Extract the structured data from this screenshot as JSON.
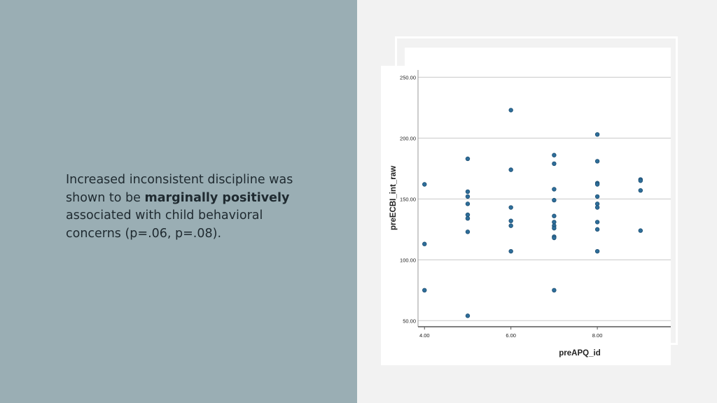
{
  "text": {
    "part1": "Increased inconsistent discipline was shown to be ",
    "bold": "marginally positively",
    "part2": " associated with child behavioral concerns (p=.06, p=.08)."
  },
  "colors": {
    "left_panel": "#9aaeb4",
    "point_fill": "#2e6e9a",
    "point_stroke": "#1d4e72"
  },
  "chart_data": {
    "type": "scatter",
    "xlabel": "preAPQ_id",
    "ylabel": "preECBI_int_raw",
    "xlim": [
      3.85,
      9.7
    ],
    "ylim": [
      45,
      256
    ],
    "xticks": [
      4,
      6,
      8
    ],
    "xtick_labels": [
      "4.00",
      "6.00",
      "8.00"
    ],
    "yticks": [
      50,
      100,
      150,
      200,
      250
    ],
    "ytick_labels": [
      "50.00",
      "100.00",
      "150.00",
      "200.00",
      "250.00"
    ],
    "grid": "horizontal",
    "points": [
      {
        "x": 4,
        "y": 162
      },
      {
        "x": 4,
        "y": 113
      },
      {
        "x": 4,
        "y": 75
      },
      {
        "x": 5,
        "y": 183
      },
      {
        "x": 5,
        "y": 156
      },
      {
        "x": 5,
        "y": 152
      },
      {
        "x": 5,
        "y": 146
      },
      {
        "x": 5,
        "y": 137
      },
      {
        "x": 5,
        "y": 134
      },
      {
        "x": 5,
        "y": 123
      },
      {
        "x": 5,
        "y": 54
      },
      {
        "x": 6,
        "y": 223
      },
      {
        "x": 6,
        "y": 174
      },
      {
        "x": 6,
        "y": 143
      },
      {
        "x": 6,
        "y": 132
      },
      {
        "x": 6,
        "y": 128
      },
      {
        "x": 6,
        "y": 107
      },
      {
        "x": 7,
        "y": 186
      },
      {
        "x": 7,
        "y": 179
      },
      {
        "x": 7,
        "y": 158
      },
      {
        "x": 7,
        "y": 149
      },
      {
        "x": 7,
        "y": 136
      },
      {
        "x": 7,
        "y": 131
      },
      {
        "x": 7,
        "y": 128
      },
      {
        "x": 7,
        "y": 126
      },
      {
        "x": 7,
        "y": 119
      },
      {
        "x": 7,
        "y": 118
      },
      {
        "x": 7,
        "y": 75
      },
      {
        "x": 8,
        "y": 203
      },
      {
        "x": 8,
        "y": 181
      },
      {
        "x": 8,
        "y": 163
      },
      {
        "x": 8,
        "y": 162
      },
      {
        "x": 8,
        "y": 152
      },
      {
        "x": 8,
        "y": 146
      },
      {
        "x": 8,
        "y": 143
      },
      {
        "x": 8,
        "y": 131
      },
      {
        "x": 8,
        "y": 125
      },
      {
        "x": 8,
        "y": 107
      },
      {
        "x": 9,
        "y": 166
      },
      {
        "x": 9,
        "y": 165
      },
      {
        "x": 9,
        "y": 157
      },
      {
        "x": 9,
        "y": 124
      }
    ]
  }
}
